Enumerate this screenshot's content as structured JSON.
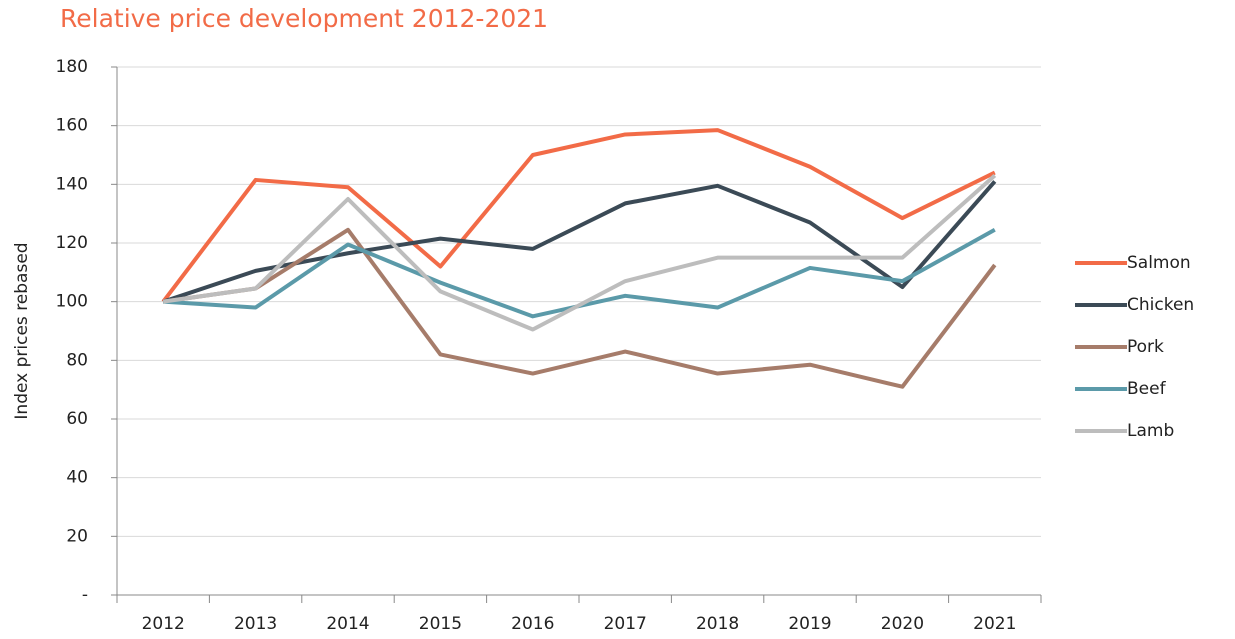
{
  "chart_data": {
    "type": "line",
    "title": "Relative price development 2012-2021",
    "y_label": "Index prices rebased",
    "categories": [
      "2012",
      "2013",
      "2014",
      "2015",
      "2016",
      "2017",
      "2018",
      "2019",
      "2020",
      "2021"
    ],
    "series": [
      {
        "name": "Salmon",
        "color": "#f26b47",
        "values": [
          100,
          141.5,
          139,
          112,
          150,
          157,
          158.5,
          146,
          128.5,
          144
        ]
      },
      {
        "name": "Chicken",
        "color": "#3b4a56",
        "values": [
          100,
          110.5,
          116.5,
          121.5,
          118,
          133.5,
          139.5,
          127,
          105,
          141
        ]
      },
      {
        "name": "Pork",
        "color": "#a67c6a",
        "values": [
          100,
          104.5,
          124.5,
          82,
          75.5,
          83,
          75.5,
          78.5,
          71,
          112.5
        ]
      },
      {
        "name": "Beef",
        "color": "#5b9aa9",
        "values": [
          100,
          98,
          119.5,
          106.5,
          95,
          102,
          98,
          111.5,
          107,
          124.5
        ]
      },
      {
        "name": "Lamb",
        "color": "#bdbdbd",
        "values": [
          100,
          104.5,
          135,
          103.5,
          90.5,
          107,
          115,
          115,
          115,
          143
        ]
      }
    ],
    "ylim": [
      0,
      180
    ],
    "yticks": [
      {
        "value": 0,
        "label": "-"
      },
      20,
      40,
      60,
      80,
      100,
      120,
      140,
      160,
      180
    ],
    "grid": true,
    "legend": "right"
  }
}
